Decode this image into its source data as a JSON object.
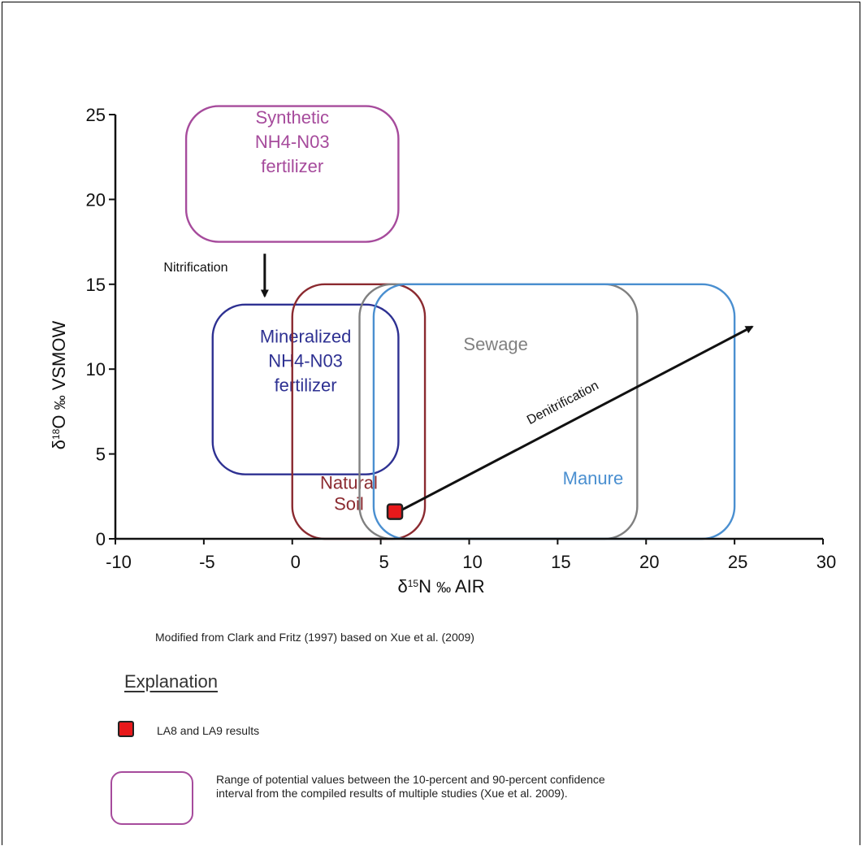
{
  "chart_data": {
    "type": "scatter",
    "x_label_prefix": "δ",
    "x_label_sup": "15",
    "x_label_main": "N ",
    "x_label_unit": "‰",
    "x_label_suffix": " AIR",
    "y_label_prefix": "δ",
    "y_label_sup": "18",
    "y_label_main": "O ",
    "y_label_unit": "‰",
    "y_label_suffix": " VSMOW",
    "xlim": [
      -10,
      30
    ],
    "ylim": [
      0,
      25
    ],
    "x_ticks": [
      -10,
      -5,
      0,
      5,
      10,
      15,
      20,
      25,
      30
    ],
    "y_ticks": [
      0,
      5,
      10,
      15,
      20,
      25
    ],
    "regions": [
      {
        "name": "Synthetic NH4-N03 fertilizer",
        "lines": [
          "Synthetic",
          "NH4-N03",
          "fertilizer"
        ],
        "color": "#a64b9c",
        "x_range": [
          -6,
          6
        ],
        "y_range": [
          17.5,
          25.5
        ]
      },
      {
        "name": "Mineralized NH4-N03 fertilizer",
        "lines": [
          "Mineralized",
          "NH4-N03",
          "fertilizer"
        ],
        "color": "#2e3192",
        "x_range": [
          -4.5,
          6
        ],
        "y_range": [
          3.8,
          13.8
        ]
      },
      {
        "name": "Natural Soil",
        "lines": [
          "Natural",
          "Soil"
        ],
        "color": "#8b2a30",
        "x_range": [
          0,
          7.5
        ],
        "y_range": [
          0,
          15
        ]
      },
      {
        "name": "Sewage",
        "lines": [
          "Sewage"
        ],
        "color": "#808080",
        "x_range": [
          3.8,
          19.5
        ],
        "y_range": [
          0,
          15
        ]
      },
      {
        "name": "Manure",
        "lines": [
          "Manure"
        ],
        "color": "#4a8fd0",
        "x_range": [
          4.6,
          25
        ],
        "y_range": [
          0,
          15
        ]
      }
    ],
    "arrows": [
      {
        "label": "Nitrification",
        "from": [
          -2.2,
          16.8
        ],
        "to": [
          -2.2,
          14.3
        ]
      },
      {
        "label": "Denitrification",
        "from": [
          6,
          1.6
        ],
        "to": [
          26,
          12.5
        ]
      }
    ],
    "points": [
      {
        "name": "LA8 and LA9 results",
        "x": 5.8,
        "y": 1.6,
        "color": "#e8191b"
      }
    ]
  },
  "caption": "Modified from Clark and Fritz (1997) based on Xue et al. (2009)",
  "explanation": {
    "title": "Explanation",
    "marker_label": "LA8 and LA9 results",
    "range_label": "Range of potential values between the 10-percent and 90-percent confidence interval from the compiled results of multiple studies (Xue et al. 2009)."
  }
}
